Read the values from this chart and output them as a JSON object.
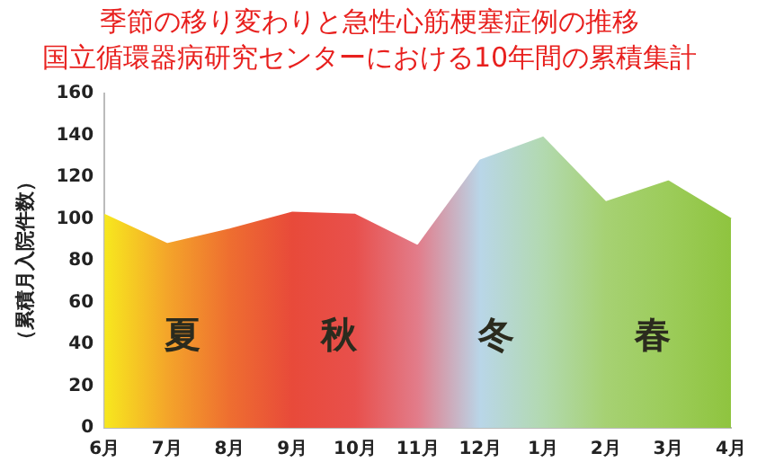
{
  "chart_data": {
    "type": "area",
    "title": "季節の移り変わりと急性心筋梗塞症例の推移",
    "subtitle": "国立循環器病研究センターにおける10年間の累積集計",
    "ylabel": "（累積月入院件数）",
    "categories": [
      "6月",
      "7月",
      "8月",
      "9月",
      "10月",
      "11月",
      "12月",
      "1月",
      "2月",
      "3月",
      "4月"
    ],
    "values": [
      102,
      88,
      95,
      103,
      102,
      87,
      128,
      139,
      108,
      118,
      100
    ],
    "colors": [
      "#f7e81e",
      "#f4a52a",
      "#ee6e30",
      "#e84a3a",
      "#e8504c",
      "#e27c8a",
      "#b9d6e8",
      "#b2d9b0",
      "#a6d173",
      "#9ccc5a",
      "#8fc43f"
    ],
    "ylim": [
      0,
      160
    ],
    "yticks": [
      0,
      20,
      40,
      60,
      80,
      100,
      120,
      140,
      160
    ],
    "grid": false,
    "legend": false,
    "annotations": [
      "夏",
      "秋",
      "冬",
      "春"
    ]
  }
}
